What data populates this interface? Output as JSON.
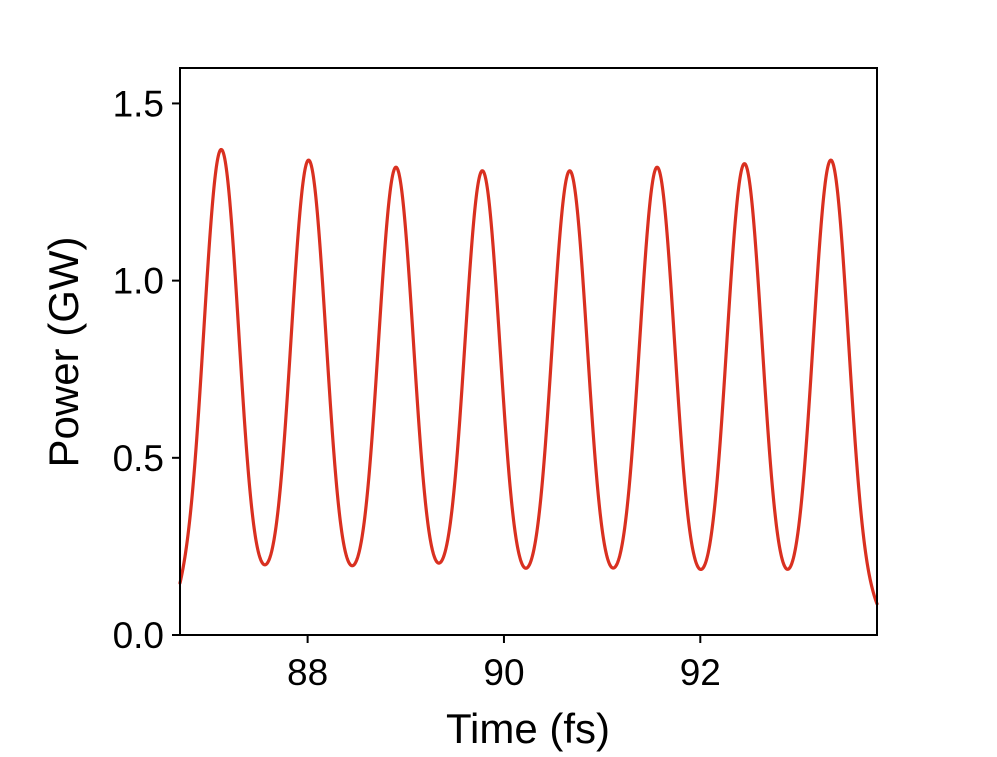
{
  "chart_data": {
    "type": "line",
    "title": "",
    "xlabel": "Time (fs)",
    "ylabel": "Power (GW)",
    "xlim": [
      86.7,
      93.8
    ],
    "ylim": [
      0.0,
      1.6
    ],
    "xticks": [
      88,
      90,
      92
    ],
    "xtick_labels": [
      "88",
      "90",
      "92"
    ],
    "yticks": [
      0.0,
      0.5,
      1.0,
      1.5
    ],
    "ytick_labels": [
      "0.0",
      "0.5",
      "1.0",
      "1.5"
    ],
    "grid": false,
    "legend": "none",
    "colors": {
      "series": "#d93020",
      "axes": "#000000",
      "background": "#ffffff"
    },
    "series": [
      {
        "main_peaks": [
          {
            "x": 87.12,
            "y": 1.37
          },
          {
            "x": 88.01,
            "y": 1.34
          },
          {
            "x": 88.9,
            "y": 1.32
          },
          {
            "x": 89.78,
            "y": 1.31
          },
          {
            "x": 90.67,
            "y": 1.31
          },
          {
            "x": 91.56,
            "y": 1.32
          },
          {
            "x": 92.45,
            "y": 1.33
          },
          {
            "x": 93.33,
            "y": 1.34
          }
        ],
        "side_peaks": [
          {
            "x": 86.7,
            "y": 0.05
          },
          {
            "x": 87.57,
            "y": 0.06
          },
          {
            "x": 88.46,
            "y": 0.06
          },
          {
            "x": 89.35,
            "y": 0.06
          },
          {
            "x": 90.23,
            "y": 0.055
          },
          {
            "x": 91.12,
            "y": 0.055
          },
          {
            "x": 92.0,
            "y": 0.05
          },
          {
            "x": 92.89,
            "y": 0.04
          },
          {
            "x": 93.78,
            "y": 0.04
          }
        ],
        "minima_y": 0.01,
        "peak_half_width_fs": 0.215
      }
    ]
  }
}
